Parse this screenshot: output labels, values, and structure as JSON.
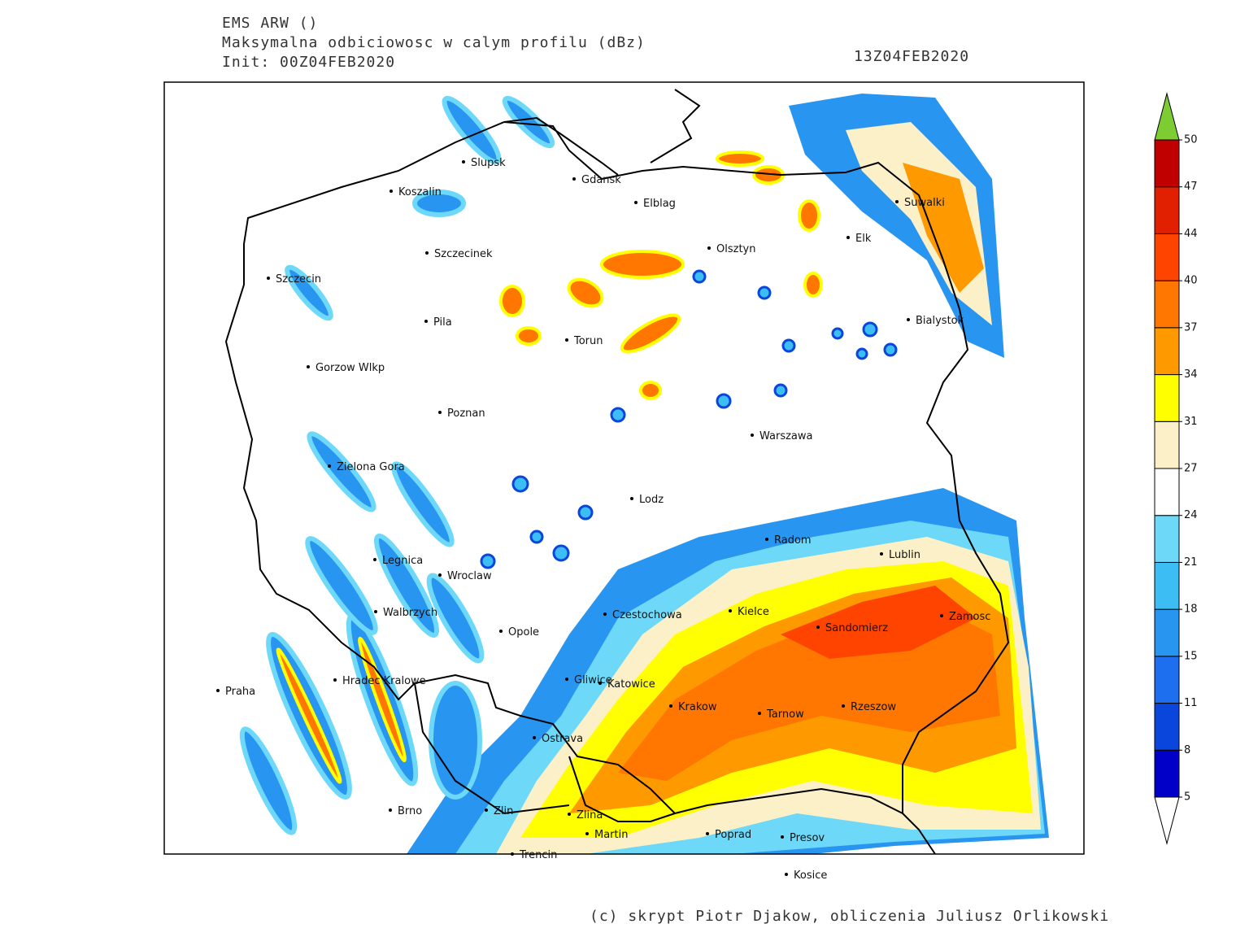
{
  "header": {
    "model": "EMS ARW ()",
    "field": "Maksymalna odbiciowosc w calym profilu (dBz)",
    "init": "Init: 00Z04FEB2020",
    "valid": "13Z04FEB2020"
  },
  "cities": [
    "Slupsk",
    "Koszalin",
    "Gdansk",
    "Elblag",
    "Szczecinek",
    "Olsztyn",
    "Elk",
    "Suwalki",
    "Szczecin",
    "Pila",
    "Torun",
    "Bialystok",
    "Gorzow Wlkp",
    "Poznan",
    "Warszawa",
    "Zielona Gora",
    "Lodz",
    "Radom",
    "Lublin",
    "Legnica",
    "Wroclaw",
    "Walbrzych",
    "Czestochowa",
    "Kielce",
    "Zamosc",
    "Opole",
    "Sandomierz",
    "Hradec Kralowe",
    "Gliwice",
    "Katowice",
    "Praha",
    "Krakow",
    "Rzeszow",
    "Tarnow",
    "Ostrava",
    "Brno",
    "Zlin",
    "Zlina",
    "Martin",
    "Poprad",
    "Presov",
    "Trencin",
    "Kosice"
  ],
  "legend": {
    "levels": [
      5,
      8,
      11,
      15,
      18,
      21,
      24,
      27,
      31,
      34,
      37,
      40,
      44,
      47,
      50
    ],
    "colors": [
      "#0000c8",
      "#0a46dc",
      "#1e6ef0",
      "#2896f0",
      "#3cbef5",
      "#6ed8f8",
      "#ffffff",
      "#fbf0c8",
      "#ffff00",
      "#ff9900",
      "#ff7700",
      "#ff4400",
      "#e02000",
      "#c00000"
    ],
    "over_color": "#7ccc32",
    "under_color": "#ffffff"
  },
  "footer": "(c) skrypt Piotr Djakow, obliczenia Juliusz Orlikowski"
}
